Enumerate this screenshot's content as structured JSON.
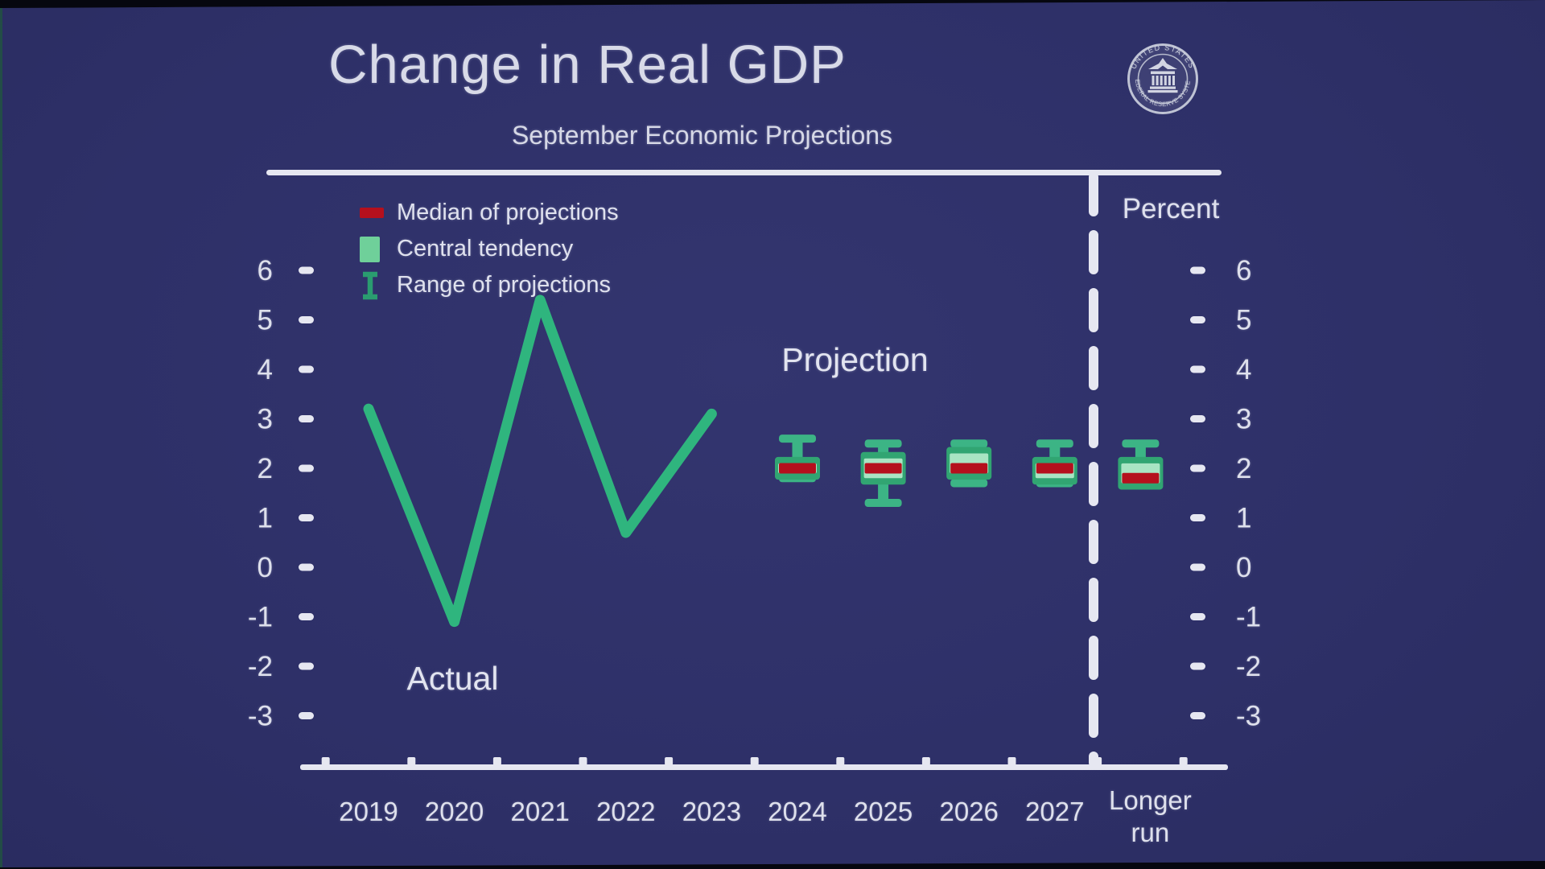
{
  "slide": {
    "title": "Change in Real GDP",
    "subtitle": "September Economic Projections",
    "percent_label": "Percent",
    "actual_label": "Actual",
    "projection_label": "Projection",
    "seal": {
      "top_text": "UNITED STATES",
      "bottom_text": "FEDERAL RESERVE SYSTEM"
    }
  },
  "legend": {
    "items": [
      {
        "icon": "median-bar-icon",
        "label": "Median of projections"
      },
      {
        "icon": "central-tendency-icon",
        "label": "Central tendency"
      },
      {
        "icon": "range-ibeam-icon",
        "label": "Range of projections"
      }
    ]
  },
  "colors": {
    "background": "#2e3068",
    "green_line": "#2fb57e",
    "green_whisker": "#3cb485",
    "green_box": "#31a572",
    "green_light": "#a9e4c3",
    "red_median": "#b5101d",
    "axis_white": "#e6e7f1",
    "text": "#dfe1ee"
  },
  "chart_data": {
    "type": "line+box-whisker",
    "title": "Change in Real GDP",
    "subtitle": "September Economic Projections",
    "ylabel": "Percent",
    "categories": [
      "2019",
      "2020",
      "2021",
      "2022",
      "2023",
      "2024",
      "2025",
      "2026",
      "2027",
      "Longer run"
    ],
    "y_ticks": [
      6,
      5,
      4,
      3,
      2,
      1,
      0,
      -1,
      -2,
      -3
    ],
    "ylim": [
      -3.6,
      6.8
    ],
    "grid": false,
    "legend_position": "top-left-inside",
    "annotations": [
      {
        "text": "Actual",
        "region": "2019-2023"
      },
      {
        "text": "Projection",
        "region": "2024-2027"
      }
    ],
    "actual_series": {
      "name": "Actual",
      "categories": [
        "2019",
        "2020",
        "2021",
        "2022",
        "2023"
      ],
      "values": [
        3.2,
        -1.1,
        5.4,
        0.7,
        3.1
      ]
    },
    "projection_series": {
      "name": "Projection",
      "boxes": [
        {
          "category": "2024",
          "median": 2.0,
          "central_tendency": [
            1.9,
            2.1
          ],
          "range": [
            1.8,
            2.6
          ]
        },
        {
          "category": "2025",
          "median": 2.0,
          "central_tendency": [
            1.8,
            2.2
          ],
          "range": [
            1.3,
            2.5
          ]
        },
        {
          "category": "2026",
          "median": 2.0,
          "central_tendency": [
            1.9,
            2.3
          ],
          "range": [
            1.7,
            2.5
          ]
        },
        {
          "category": "2027",
          "median": 2.0,
          "central_tendency": [
            1.8,
            2.1
          ],
          "range": [
            1.7,
            2.5
          ]
        },
        {
          "category": "Longer run",
          "median": 1.8,
          "central_tendency": [
            1.7,
            2.1
          ],
          "range": [
            1.7,
            2.5
          ]
        }
      ]
    }
  }
}
